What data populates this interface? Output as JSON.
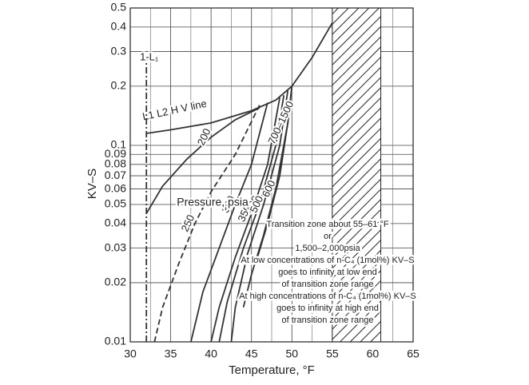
{
  "chart_data": {
    "type": "line",
    "log_y": true,
    "grid": true,
    "xlabel": "Temperature, °F",
    "ylabel": "KV–S",
    "xlim": [
      30,
      65
    ],
    "xticks": [
      30,
      35,
      40,
      45,
      50,
      55,
      60,
      65
    ],
    "ylim": [
      0.01,
      0.5
    ],
    "yticks": [
      0.01,
      0.02,
      0.03,
      0.04,
      0.05,
      0.06,
      0.07,
      0.08,
      0.09,
      0.1,
      0.2,
      0.3,
      0.4,
      0.5
    ],
    "transition_zone": [
      55,
      61
    ],
    "series": [
      {
        "name": "L1 L2 H V line",
        "color": "#333333",
        "x": [
          32,
          35,
          40,
          45,
          48,
          50,
          52.5,
          55
        ],
        "values": [
          0.115,
          0.12,
          0.13,
          0.15,
          0.17,
          0.2,
          0.28,
          0.42
        ]
      },
      {
        "name": "1-L₁",
        "color": "#333333",
        "x": [
          32,
          32
        ],
        "values": [
          0.01,
          0.28
        ]
      },
      {
        "name": "200",
        "color": "#333333",
        "x": [
          32,
          34,
          37,
          40,
          43,
          46
        ],
        "values": [
          0.045,
          0.062,
          0.085,
          0.11,
          0.135,
          0.155
        ]
      },
      {
        "name": "250",
        "color": "#333333",
        "x": [
          33,
          34,
          36,
          38,
          40,
          43,
          46
        ],
        "values": [
          0.01,
          0.015,
          0.025,
          0.04,
          0.058,
          0.09,
          0.16
        ]
      },
      {
        "name": "300",
        "color": "#333333",
        "x": [
          37.5,
          39,
          41,
          43,
          45,
          47
        ],
        "values": [
          0.01,
          0.018,
          0.03,
          0.05,
          0.08,
          0.165
        ]
      },
      {
        "name": "350",
        "color": "#333333",
        "x": [
          40,
          41,
          43,
          45,
          47,
          48.5
        ],
        "values": [
          0.01,
          0.015,
          0.027,
          0.045,
          0.08,
          0.175
        ]
      },
      {
        "name": "400",
        "color": "#333333",
        "x": [
          41,
          42,
          44,
          46,
          48,
          49
        ],
        "values": [
          0.01,
          0.016,
          0.03,
          0.05,
          0.1,
          0.18
        ]
      },
      {
        "name": "500",
        "color": "#333333",
        "x": [
          42.5,
          43,
          44.5,
          46.5,
          48.5,
          49.5
        ],
        "values": [
          0.01,
          0.015,
          0.028,
          0.05,
          0.1,
          0.19
        ]
      },
      {
        "name": "600",
        "color": "#333333",
        "x": [
          44,
          45,
          46.5,
          48,
          49.5,
          50
        ],
        "values": [
          0.015,
          0.022,
          0.035,
          0.06,
          0.13,
          0.2
        ]
      },
      {
        "name": "700–1500",
        "color": "#333333",
        "x": [
          45.5,
          47,
          48.5,
          49.5,
          50
        ],
        "values": [
          0.025,
          0.04,
          0.07,
          0.13,
          0.2
        ]
      }
    ],
    "pressure_label": "Pressure, psia",
    "annotation": [
      "Transition zone about 55–61 °F",
      "or",
      "1,500–2,000psia",
      "At low concentrations of n-C₄ (1mol%) KV–S",
      "goes to infinity at low end",
      "of transition zone range",
      "At high concentrations of n-C₄ (1mol%) KV–S",
      "goes to infinity at high end",
      "of transition zone range"
    ]
  }
}
